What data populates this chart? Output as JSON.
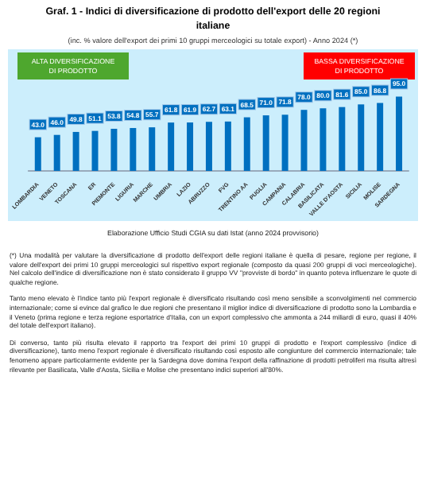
{
  "chart_data": {
    "type": "bar",
    "title": "Graf. 1 - Indici di diversificazione di prodotto dell'export delle 20 regioni italiane",
    "subtitle": "(inc. % valore dell'export dei primi 10 gruppi merceologici su totale export) - Anno 2024 (*)",
    "categories": [
      "LOMBARDIA",
      "VENETO",
      "TOSCANA",
      "ER",
      "PIEMONTE",
      "LIGURIA",
      "MARCHE",
      "UMBRIA",
      "LAZIO",
      "ABRUZZO",
      "FVG",
      "TRENTINO AA",
      "PUGLIA",
      "CAMPANIA",
      "CALABRIA",
      "BASILICATA",
      "VALLE D'AOSTA",
      "SICILIA",
      "MOLISE",
      "SARDEGNA"
    ],
    "values": [
      43.0,
      46.0,
      49.8,
      51.1,
      53.8,
      54.8,
      55.7,
      61.8,
      61.9,
      62.7,
      63.1,
      68.5,
      71.0,
      71.8,
      78.0,
      80.0,
      81.6,
      85.0,
      86.8,
      95.0
    ],
    "color": "#0070c0",
    "value_labels": [
      "43.0",
      "46.0",
      "49.8",
      "51.1",
      "53.8",
      "54.8",
      "55.7",
      "61.8",
      "61.9",
      "62.7",
      "63.1",
      "68.5",
      "71.0",
      "71.8",
      "78.0",
      "80.0",
      "81.6",
      "85.0",
      "86.8",
      "95.0"
    ],
    "annotations": [
      "ALTA DIVERSIFICAZIONE DI PRODOTTO",
      "BASSA DIVERSIFICAZIONE DI PRODOTTO",
      "Elaborazione Ufficio Studi CGIA su dati Istat (anno 2024 provvisorio)",
      "(*) Una modalità per valutare la diversificazione di prodotto dell'export delle regioni italiane è quella di pesare, regione per regione, il valore dell'export dei primi 10 gruppi merceologici sul rispettivo export regionale (composto da quasi 200 gruppi di voci merceologiche). Nel calcolo dell'indice di diversificazione non è stato considerato il gruppo VV \"provviste di bordo\" in quanto poteva influenzare le quote di qualche regione.",
      "Tanto meno elevato è l'indice tanto più l'export regionale è diversificato risultando così meno sensibile a sconvolgimenti nel commercio internazionale; come si evince dal grafico le due regioni che presentano il miglior indice di diversificazione di prodotto sono la Lombardia e il Veneto (prima regione e terza regione esportatrice d'Italia, con un export complessivo che ammonta a 244 miliardi di euro, quasi il 40% del totale dell'export italiano).",
      "Di converso, tanto più risulta elevato il rapporto tra l'export dei primi 10 gruppi di prodotto e l'export complessivo (indice di diversificazione), tanto meno l'export regionale è diversificato risultando così esposto alle congiunture del commercio internazionale; tale fenomeno appare particolarmente evidente per la Sardegna dove domina l'export della raffinazione di prodotti petroliferi ma risulta altresì rilevante per Basilicata, Valle d'Aosta, Sicilia e Molise che presentano indici superiori all'80%."
    ]
  }
}
